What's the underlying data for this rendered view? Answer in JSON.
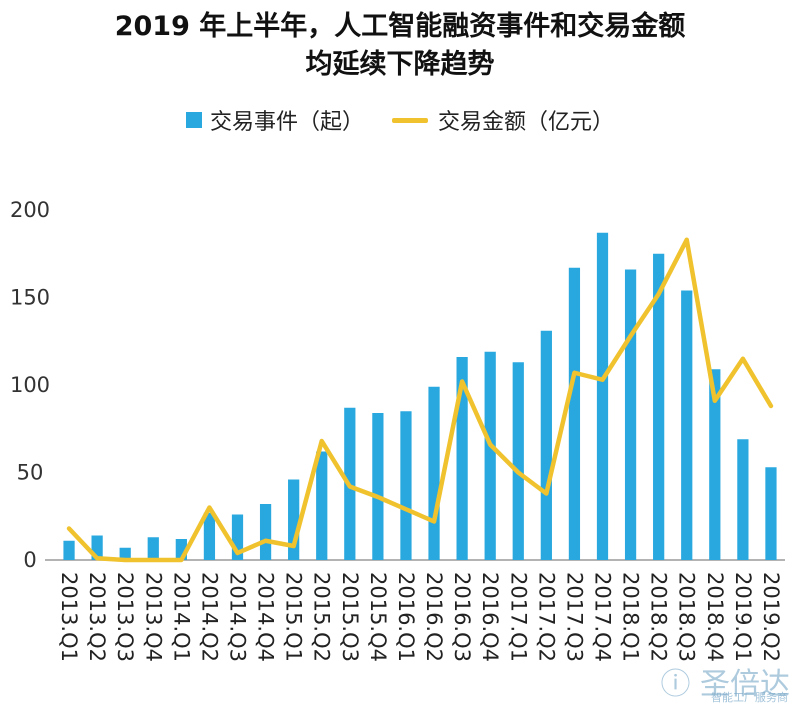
{
  "chart_data": {
    "type": "bar",
    "title_line1": "2019 年上半年，人工智能融资事件和交易金额",
    "title_line2": "均延续下降趋势",
    "legend": {
      "bar_label": "交易事件（起）",
      "line_label": "交易金额（亿元）"
    },
    "categories": [
      "2013.Q1",
      "2013.Q2",
      "2013.Q3",
      "2013.Q4",
      "2014.Q1",
      "2014.Q2",
      "2014.Q3",
      "2014.Q4",
      "2015.Q1",
      "2015.Q2",
      "2015.Q3",
      "2015.Q4",
      "2016.Q1",
      "2016.Q2",
      "2016.Q3",
      "2016.Q4",
      "2017.Q1",
      "2017.Q2",
      "2017.Q3",
      "2017.Q4",
      "2018.Q1",
      "2018.Q2",
      "2018.Q3",
      "2018.Q4",
      "2019.Q1",
      "2019.Q2"
    ],
    "series": [
      {
        "name": "交易事件（起）",
        "type": "bar",
        "color": "#29a8df",
        "values": [
          11,
          14,
          7,
          13,
          12,
          27,
          26,
          32,
          46,
          62,
          87,
          84,
          85,
          99,
          116,
          119,
          113,
          131,
          167,
          187,
          166,
          175,
          154,
          109,
          69,
          53
        ]
      },
      {
        "name": "交易金额（亿元）",
        "type": "line",
        "color": "#f0c22e",
        "values": [
          18,
          1,
          0,
          0,
          0,
          30,
          4,
          11,
          8,
          68,
          42,
          36,
          29,
          22,
          102,
          66,
          50,
          38,
          107,
          103,
          128,
          152,
          183,
          91,
          115,
          88
        ]
      }
    ],
    "yticks": [
      0,
      50,
      100,
      150,
      200
    ],
    "ylim": [
      0,
      200
    ],
    "grid": false
  },
  "watermark": {
    "main": "ⓘ 圣倍达",
    "sub": "智能工厂服务商"
  }
}
